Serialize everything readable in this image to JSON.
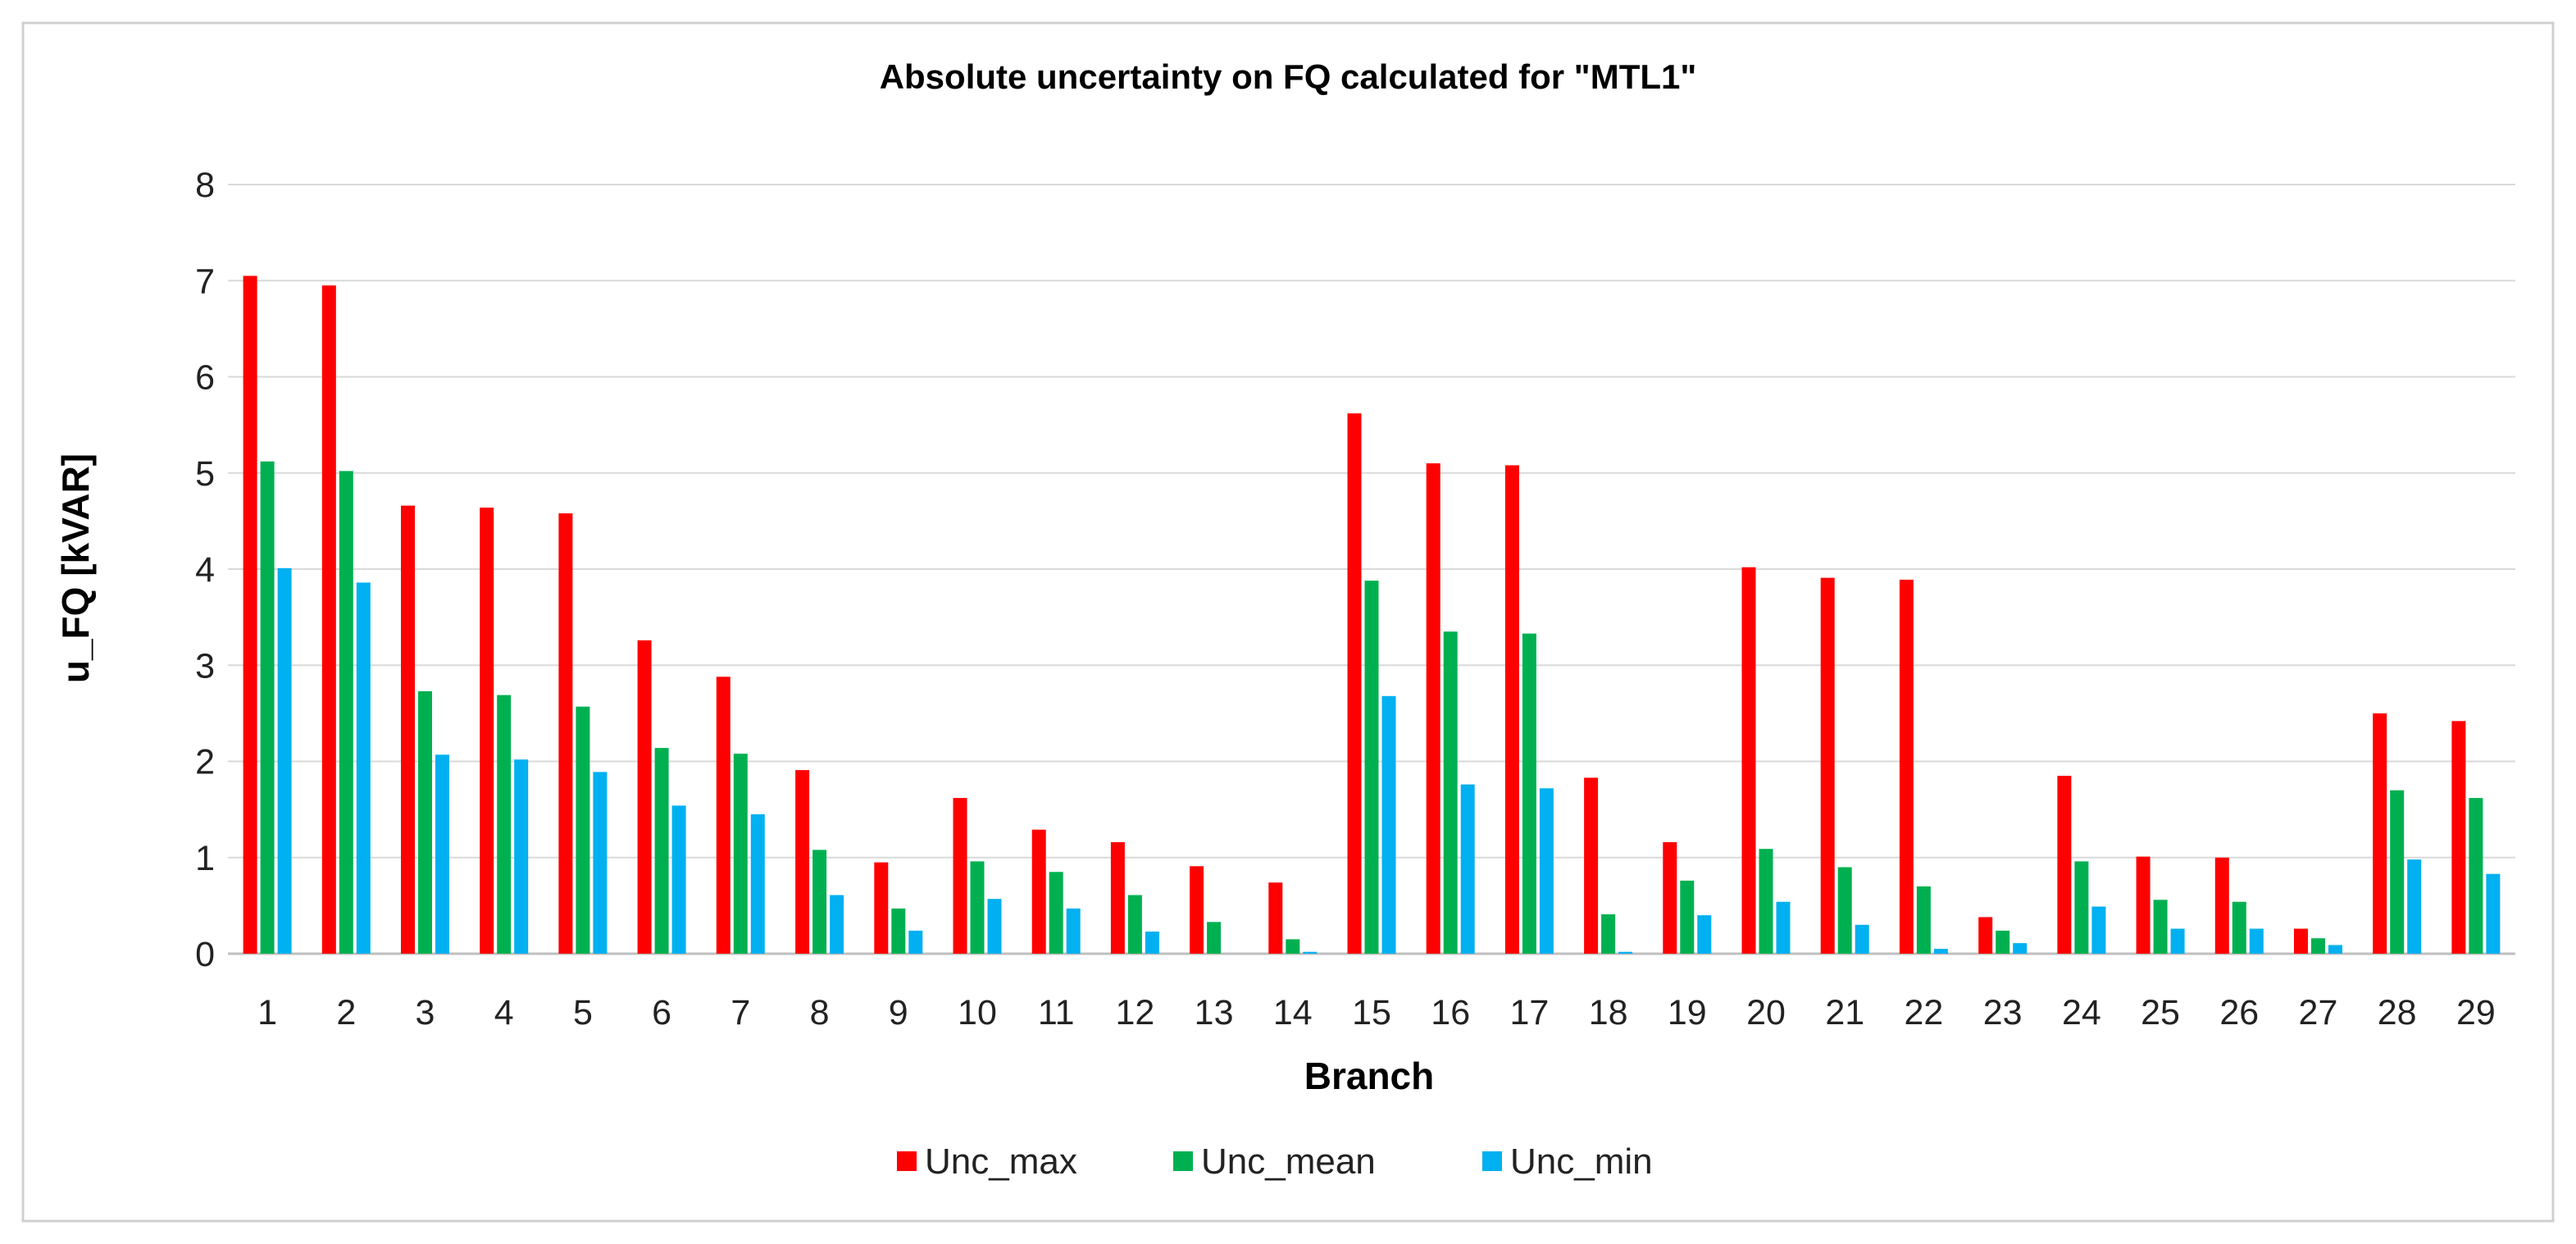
{
  "chart_data": {
    "type": "bar",
    "title": "Absolute uncertainty on FQ calculated for \"MTL1\"",
    "xlabel": "Branch",
    "ylabel": "u_FQ [kVAR]",
    "ylim": [
      0,
      8
    ],
    "yticks": [
      "0",
      "1",
      "2",
      "3",
      "4",
      "5",
      "6",
      "7",
      "8"
    ],
    "grid": true,
    "legend_position": "bottom-center",
    "categories": [
      "1",
      "2",
      "3",
      "4",
      "5",
      "6",
      "7",
      "8",
      "9",
      "10",
      "11",
      "12",
      "13",
      "14",
      "15",
      "16",
      "17",
      "18",
      "19",
      "20",
      "21",
      "22",
      "23",
      "24",
      "25",
      "26",
      "27",
      "28",
      "29"
    ],
    "series": [
      {
        "name": "Unc_max",
        "color": "#ff0000",
        "values": [
          7.05,
          6.95,
          4.66,
          4.64,
          4.58,
          3.26,
          2.88,
          1.91,
          0.95,
          1.62,
          1.29,
          1.16,
          0.91,
          0.74,
          5.62,
          5.1,
          5.08,
          1.83,
          1.16,
          4.02,
          3.91,
          3.89,
          0.38,
          1.85,
          1.01,
          1.0,
          0.26,
          2.5,
          2.42
        ]
      },
      {
        "name": "Unc_mean",
        "color": "#00b050",
        "values": [
          5.12,
          5.02,
          2.73,
          2.69,
          2.57,
          2.14,
          2.08,
          1.08,
          0.47,
          0.96,
          0.85,
          0.61,
          0.33,
          0.15,
          3.88,
          3.35,
          3.33,
          0.41,
          0.76,
          1.09,
          0.9,
          0.7,
          0.24,
          0.96,
          0.56,
          0.54,
          0.16,
          1.7,
          1.62
        ]
      },
      {
        "name": "Unc_min",
        "color": "#00b0f0",
        "values": [
          4.01,
          3.86,
          2.07,
          2.02,
          1.89,
          1.54,
          1.45,
          0.61,
          0.24,
          0.57,
          0.47,
          0.23,
          0.0,
          0.02,
          2.68,
          1.76,
          1.72,
          0.02,
          0.4,
          0.54,
          0.3,
          0.05,
          0.11,
          0.49,
          0.26,
          0.26,
          0.09,
          0.98,
          0.83
        ]
      }
    ]
  }
}
